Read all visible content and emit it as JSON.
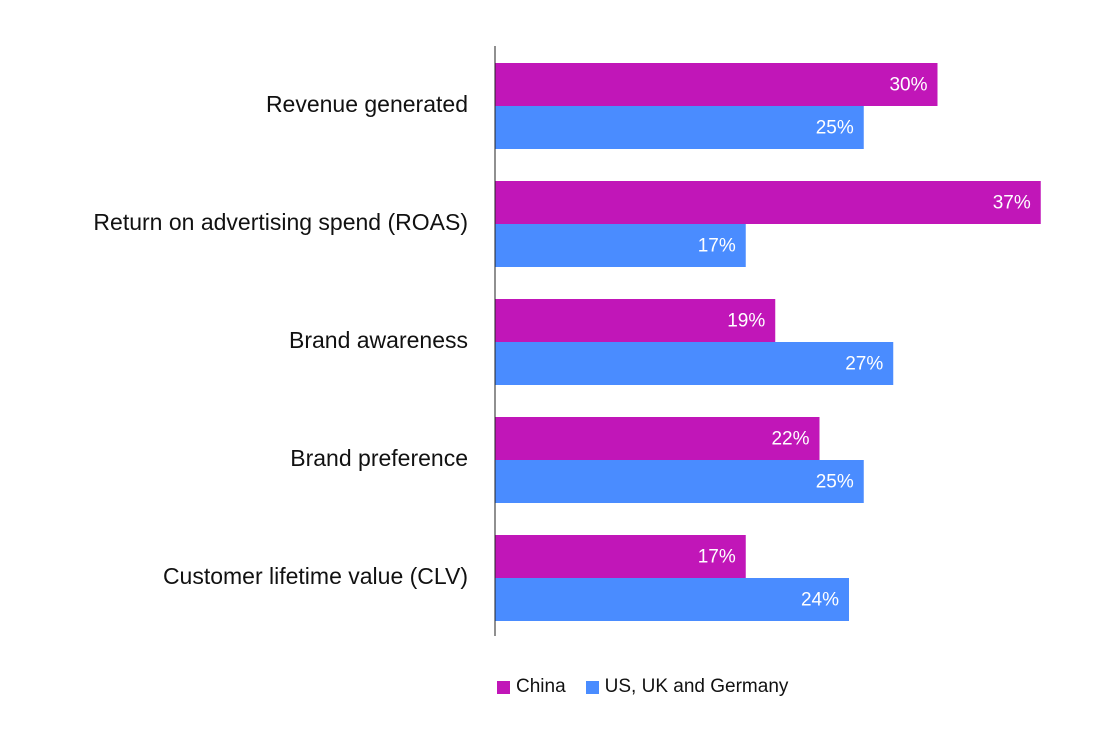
{
  "chart_data": {
    "type": "bar",
    "orientation": "horizontal",
    "categories": [
      "Revenue generated",
      "Return on advertising spend (ROAS)",
      "Brand awareness",
      "Brand preference",
      "Customer lifetime value (CLV)"
    ],
    "series": [
      {
        "name": "China",
        "color": "#c116b8",
        "values": [
          30,
          37,
          19,
          22,
          17
        ],
        "labels": [
          "30%",
          "37%",
          "19%",
          "22%",
          "17%"
        ]
      },
      {
        "name": "US, UK and Germany",
        "color": "#4a8cff",
        "values": [
          25,
          17,
          27,
          25,
          24
        ],
        "labels": [
          "25%",
          "17%",
          "27%",
          "25%",
          "24%"
        ]
      }
    ],
    "value_unit": "%",
    "grid": false,
    "legend_position": "bottom"
  }
}
